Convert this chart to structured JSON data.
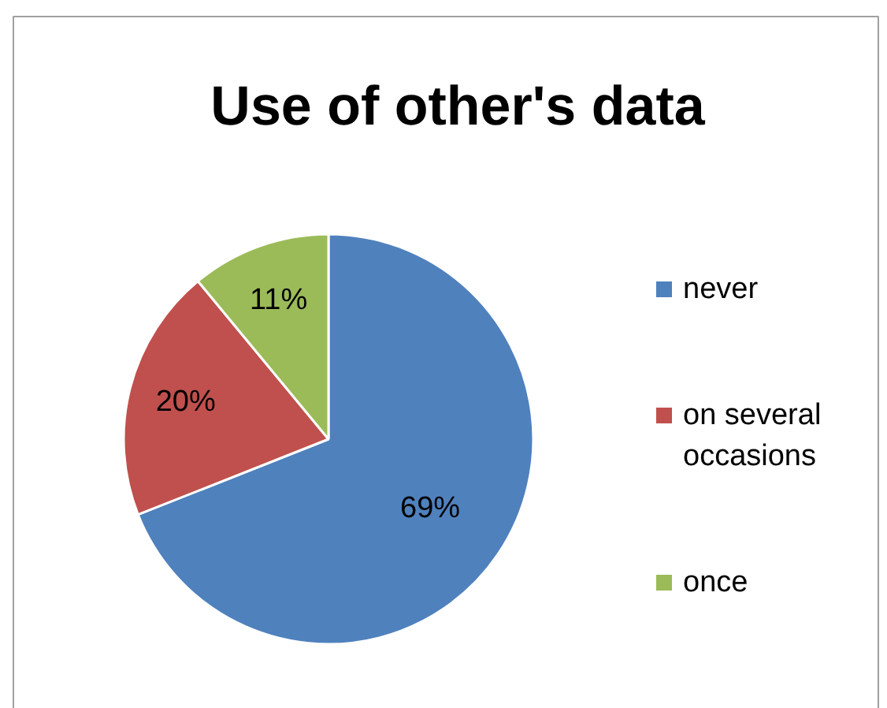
{
  "chart_data": {
    "type": "pie",
    "title": "Use of other's data",
    "categories": [
      "never",
      "on several occasions",
      "once"
    ],
    "values": [
      69,
      20,
      11
    ],
    "colors": [
      "#4f81bd",
      "#c0504d",
      "#9bbb59"
    ],
    "value_labels": [
      "69%",
      "20%",
      "11%"
    ],
    "legend": "right"
  }
}
